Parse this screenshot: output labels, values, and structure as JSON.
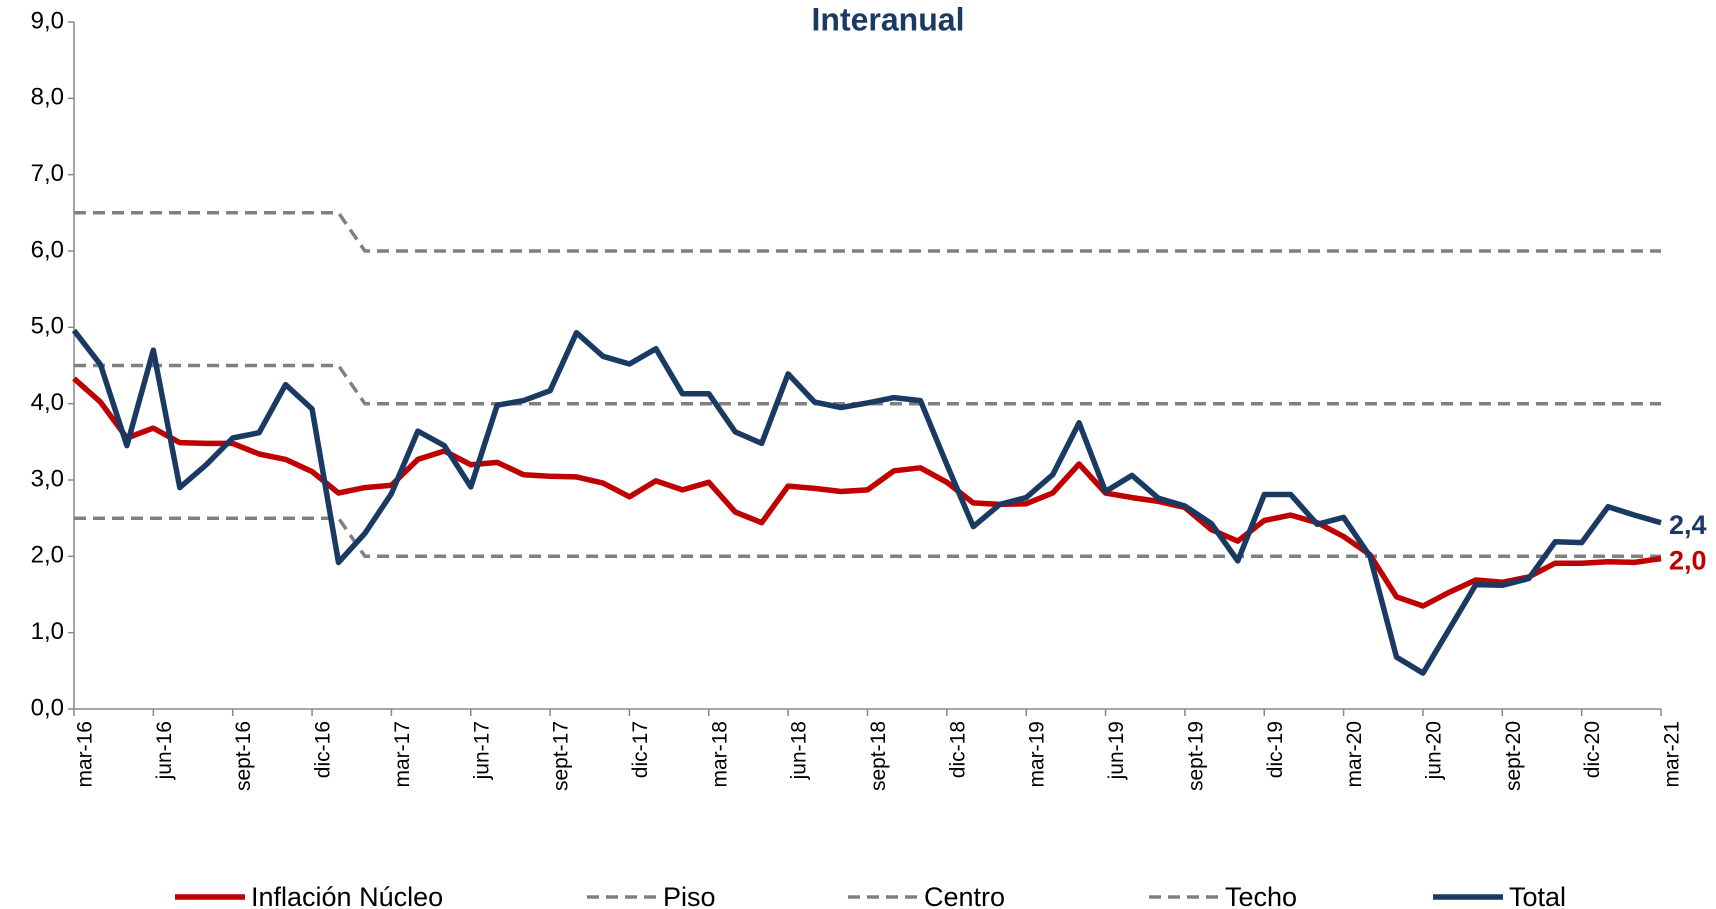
{
  "chart_data": {
    "type": "line",
    "title": "Interanual",
    "categories": [
      "mar-16",
      null,
      null,
      "jun-16",
      null,
      null,
      "sept-16",
      null,
      null,
      "dic-16",
      null,
      null,
      "mar-17",
      null,
      null,
      "jun-17",
      null,
      null,
      "sept-17",
      null,
      null,
      "dic-17",
      null,
      null,
      "mar-18",
      null,
      null,
      "jun-18",
      null,
      null,
      "sept-18",
      null,
      null,
      "dic-18",
      null,
      null,
      "mar-19",
      null,
      null,
      "jun-19",
      null,
      null,
      "sept-19",
      null,
      null,
      "dic-19",
      null,
      null,
      "mar-20",
      null,
      null,
      "jun-20",
      null,
      null,
      "sept-20",
      null,
      null,
      "dic-20",
      null,
      null,
      "mar-21"
    ],
    "ylim": [
      0,
      9
    ],
    "yticks": [
      {
        "value": 0,
        "label": "0,0"
      },
      {
        "value": 1,
        "label": "1,0"
      },
      {
        "value": 2,
        "label": "2,0"
      },
      {
        "value": 3,
        "label": "3,0"
      },
      {
        "value": 4,
        "label": "4,0"
      },
      {
        "value": 5,
        "label": "5,0"
      },
      {
        "value": 6,
        "label": "6,0"
      },
      {
        "value": 7,
        "label": "7,0"
      },
      {
        "value": 8,
        "label": "8,0"
      },
      {
        "value": 9,
        "label": "9,0"
      }
    ],
    "grid": false,
    "legend": "bottom",
    "series": [
      {
        "name": "Inflación Núcleo",
        "color": "#c00000",
        "dashed": false,
        "values": [
          4.33,
          4.02,
          3.55,
          3.68,
          3.49,
          3.48,
          3.48,
          3.34,
          3.27,
          3.11,
          2.83,
          2.9,
          2.93,
          3.27,
          3.38,
          3.2,
          3.23,
          3.07,
          3.05,
          3.04,
          2.96,
          2.78,
          2.99,
          2.87,
          2.97,
          2.58,
          2.44,
          2.92,
          2.89,
          2.85,
          2.87,
          3.12,
          3.16,
          2.97,
          2.7,
          2.68,
          2.69,
          2.83,
          3.21,
          2.83,
          2.77,
          2.72,
          2.64,
          2.35,
          2.2,
          2.47,
          2.54,
          2.44,
          2.26,
          2.02,
          1.47,
          1.35,
          1.53,
          1.69,
          1.66,
          1.73,
          1.91,
          1.91,
          1.93,
          1.92,
          1.97
        ],
        "value_labels": [
          null,
          null,
          null,
          null,
          null,
          null,
          null,
          null,
          null,
          null,
          null,
          null,
          null,
          null,
          null,
          null,
          null,
          null,
          null,
          null,
          null,
          null,
          null,
          null,
          null,
          null,
          null,
          null,
          null,
          null,
          null,
          null,
          null,
          null,
          null,
          null,
          null,
          null,
          null,
          null,
          null,
          null,
          null,
          null,
          null,
          null,
          null,
          null,
          null,
          null,
          null,
          null,
          null,
          null,
          null,
          null,
          null,
          null,
          null,
          null,
          "2,0"
        ]
      },
      {
        "name": "Piso",
        "color": "#808080",
        "dashed": true,
        "values": [
          2.5,
          2.5,
          2.5,
          2.5,
          2.5,
          2.5,
          2.5,
          2.5,
          2.5,
          2.5,
          2.5,
          2,
          2,
          2,
          2,
          2,
          2,
          2,
          2,
          2,
          2,
          2,
          2,
          2,
          2,
          2,
          2,
          2,
          2,
          2,
          2,
          2,
          2,
          2,
          2,
          2,
          2,
          2,
          2,
          2,
          2,
          2,
          2,
          2,
          2,
          2,
          2,
          2,
          2,
          2,
          2,
          2,
          2,
          2,
          2,
          2,
          2,
          2,
          2,
          2,
          2
        ]
      },
      {
        "name": "Centro",
        "color": "#808080",
        "dashed": true,
        "values": [
          4.5,
          4.5,
          4.5,
          4.5,
          4.5,
          4.5,
          4.5,
          4.5,
          4.5,
          4.5,
          4.5,
          4,
          4,
          4,
          4,
          4,
          4,
          4,
          4,
          4,
          4,
          4,
          4,
          4,
          4,
          4,
          4,
          4,
          4,
          4,
          4,
          4,
          4,
          4,
          4,
          4,
          4,
          4,
          4,
          4,
          4,
          4,
          4,
          4,
          4,
          4,
          4,
          4,
          4,
          4,
          4,
          4,
          4,
          4,
          4,
          4,
          4,
          4,
          4,
          4,
          4
        ]
      },
      {
        "name": "Techo",
        "color": "#808080",
        "dashed": true,
        "values": [
          6.5,
          6.5,
          6.5,
          6.5,
          6.5,
          6.5,
          6.5,
          6.5,
          6.5,
          6.5,
          6.5,
          6,
          6,
          6,
          6,
          6,
          6,
          6,
          6,
          6,
          6,
          6,
          6,
          6,
          6,
          6,
          6,
          6,
          6,
          6,
          6,
          6,
          6,
          6,
          6,
          6,
          6,
          6,
          6,
          6,
          6,
          6,
          6,
          6,
          6,
          6,
          6,
          6,
          6,
          6,
          6,
          6,
          6,
          6,
          6,
          6,
          6,
          6,
          6,
          6,
          6
        ]
      },
      {
        "name": "Total",
        "color": "#1b3a63",
        "dashed": false,
        "values": [
          4.96,
          4.51,
          3.45,
          4.7,
          2.9,
          3.2,
          3.55,
          3.62,
          4.25,
          3.93,
          1.92,
          2.3,
          2.82,
          3.64,
          3.45,
          2.91,
          3.98,
          4.04,
          4.17,
          4.93,
          4.62,
          4.52,
          4.72,
          4.13,
          4.13,
          3.63,
          3.48,
          4.39,
          4.02,
          3.95,
          4.01,
          4.08,
          4.04,
          3.2,
          2.39,
          2.68,
          2.77,
          3.07,
          3.75,
          2.85,
          3.06,
          2.76,
          2.66,
          2.43,
          1.94,
          2.81,
          2.81,
          2.42,
          2.51,
          2.0,
          0.68,
          0.47,
          1.05,
          1.63,
          1.62,
          1.71,
          2.19,
          2.18,
          2.65,
          2.54,
          2.44
        ],
        "value_labels": [
          null,
          null,
          null,
          null,
          null,
          null,
          null,
          null,
          null,
          null,
          null,
          null,
          null,
          null,
          null,
          null,
          null,
          null,
          null,
          null,
          null,
          null,
          null,
          null,
          null,
          null,
          null,
          null,
          null,
          null,
          null,
          null,
          null,
          null,
          null,
          null,
          null,
          null,
          null,
          null,
          null,
          null,
          null,
          null,
          null,
          null,
          null,
          null,
          null,
          null,
          null,
          null,
          null,
          null,
          null,
          null,
          null,
          null,
          null,
          null,
          "2,4"
        ]
      }
    ]
  }
}
